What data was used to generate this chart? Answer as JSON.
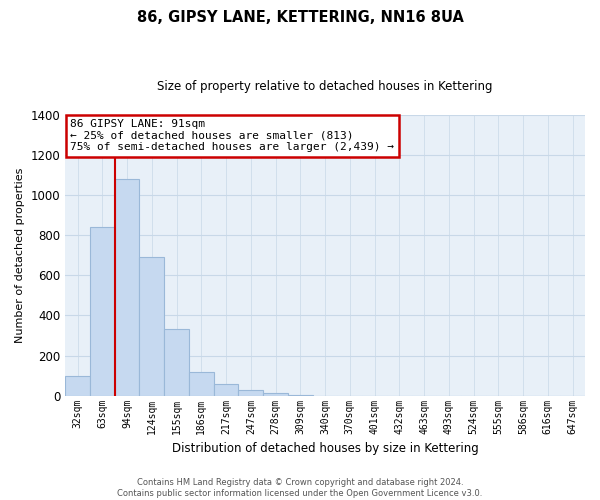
{
  "title": "86, GIPSY LANE, KETTERING, NN16 8UA",
  "subtitle": "Size of property relative to detached houses in Kettering",
  "xlabel": "Distribution of detached houses by size in Kettering",
  "ylabel": "Number of detached properties",
  "bar_labels": [
    "32sqm",
    "63sqm",
    "94sqm",
    "124sqm",
    "155sqm",
    "186sqm",
    "217sqm",
    "247sqm",
    "278sqm",
    "309sqm",
    "340sqm",
    "370sqm",
    "401sqm",
    "432sqm",
    "463sqm",
    "493sqm",
    "524sqm",
    "555sqm",
    "586sqm",
    "616sqm",
    "647sqm"
  ],
  "bar_values": [
    100,
    840,
    1080,
    690,
    330,
    120,
    60,
    30,
    15,
    5,
    0,
    0,
    0,
    0,
    0,
    0,
    0,
    0,
    0,
    0,
    0
  ],
  "bar_color": "#c6d9f0",
  "bar_edge_color": "#9ab8d8",
  "highlight_bar_index": 2,
  "highlight_line_color": "#cc0000",
  "ylim": [
    0,
    1400
  ],
  "yticks": [
    0,
    200,
    400,
    600,
    800,
    1000,
    1200,
    1400
  ],
  "annotation_title": "86 GIPSY LANE: 91sqm",
  "annotation_line1": "← 25% of detached houses are smaller (813)",
  "annotation_line2": "75% of semi-detached houses are larger (2,439) →",
  "annotation_box_edge_color": "#cc0000",
  "footer_line1": "Contains HM Land Registry data © Crown copyright and database right 2024.",
  "footer_line2": "Contains public sector information licensed under the Open Government Licence v3.0.",
  "grid_color": "#c8d8e8",
  "background_color": "#ffffff",
  "plot_bg_color": "#e8f0f8"
}
